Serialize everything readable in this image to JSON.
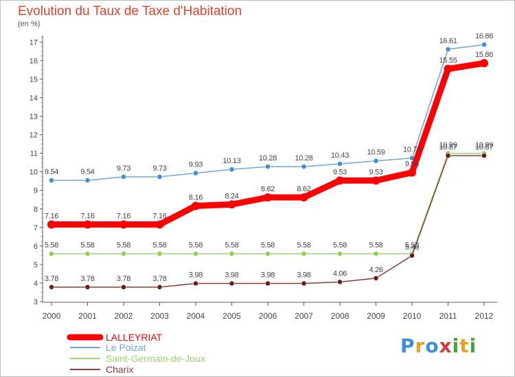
{
  "title": "Evolution du Taux de Taxe d'Habitation",
  "unit_label": "(en %)",
  "brand": {
    "letters": [
      "P",
      "r",
      "o",
      "x",
      "i",
      "t",
      "i"
    ],
    "colors": [
      "#3a8fd8",
      "#e8a020",
      "#3a8fd8",
      "#d83a3a",
      "#3aa83a",
      "#e8a020",
      "#3aa83a"
    ]
  },
  "chart_data": {
    "type": "line",
    "x": [
      "2000",
      "2001",
      "2002",
      "2003",
      "2004",
      "2005",
      "2006",
      "2007",
      "2008",
      "2009",
      "2010",
      "2011",
      "2012"
    ],
    "y_ticks": [
      "3",
      "4",
      "5",
      "6",
      "7",
      "8",
      "9",
      "10",
      "11",
      "12",
      "13",
      "14",
      "15",
      "16",
      "17"
    ],
    "ylim": [
      3,
      17.5
    ],
    "grid": false,
    "legend_position": "bottom-left",
    "series": [
      {
        "name": "LALLEYRIAT",
        "color": "#ff0000",
        "values": [
          7.16,
          7.16,
          7.16,
          7.16,
          8.16,
          8.24,
          8.62,
          8.62,
          9.53,
          9.53,
          9.96,
          15.55,
          15.86
        ],
        "labels": [
          "7.16",
          "7.16",
          "7.16",
          "7.16",
          "8.16",
          "8.24",
          "8.62",
          "8.62",
          "9.53",
          "9.53",
          "9.96",
          "15.55",
          "15.86"
        ]
      },
      {
        "name": "Le Poizat",
        "color": "#6fa6d6",
        "values": [
          9.54,
          9.54,
          9.73,
          9.73,
          9.93,
          10.13,
          10.28,
          10.28,
          10.43,
          10.59,
          10.74,
          16.61,
          16.86
        ],
        "labels": [
          "9.54",
          "9.54",
          "9.73",
          "9.73",
          "9.93",
          "10.13",
          "10.28",
          "10.28",
          "10.43",
          "10.59",
          "10.74",
          "16.61",
          "16.86"
        ]
      },
      {
        "name": "Saint-Germain-de-Joux",
        "color": "#9ad46a",
        "values": [
          5.58,
          5.58,
          5.58,
          5.58,
          5.58,
          5.58,
          5.58,
          5.58,
          5.58,
          5.58,
          5.58,
          10.99,
          10.99
        ],
        "labels": [
          "5.58",
          "5.58",
          "5.58",
          "5.58",
          "5.58",
          "5.58",
          "5.58",
          "5.58",
          "5.58",
          "5.58",
          "5.58",
          "10.99",
          "10.99"
        ]
      },
      {
        "name": "Charix",
        "color": "#8b3a3a",
        "values": [
          3.78,
          3.78,
          3.78,
          3.78,
          3.98,
          3.98,
          3.98,
          3.98,
          4.06,
          4.26,
          5.48,
          10.87,
          10.87
        ],
        "labels": [
          "3.78",
          "3.78",
          "3.78",
          "3.78",
          "3.98",
          "3.98",
          "3.98",
          "3.98",
          "4.06",
          "4.26",
          "5.48",
          "10.87",
          "10.87"
        ]
      }
    ]
  }
}
